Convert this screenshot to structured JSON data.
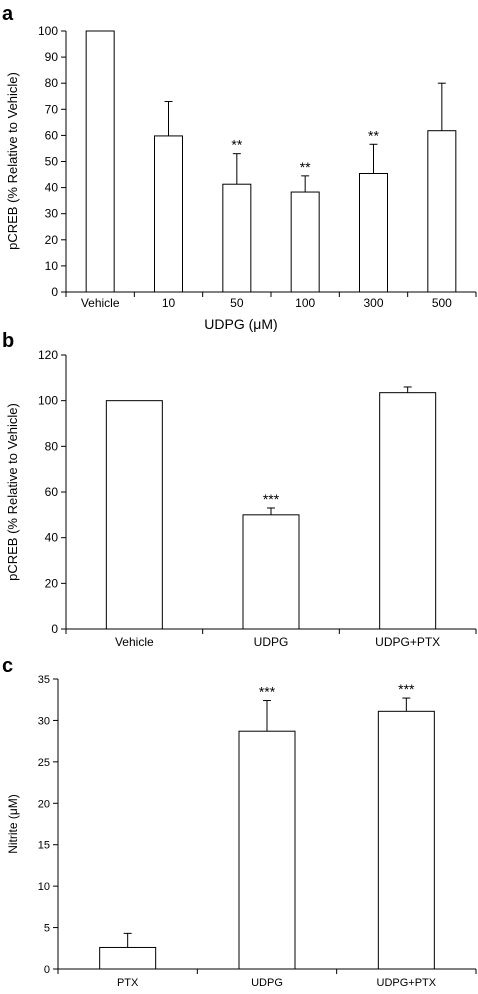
{
  "chart_data": [
    {
      "panel_label": "a",
      "type": "bar",
      "categories": [
        "Vehicle",
        "10",
        "50",
        "100",
        "300",
        "500"
      ],
      "values": [
        100,
        59.8,
        41.3,
        38.3,
        45.4,
        61.8
      ],
      "errors": [
        0,
        13.2,
        11.7,
        6.2,
        11.2,
        18.2
      ],
      "significance": [
        "",
        "",
        "**",
        "**",
        "**",
        ""
      ],
      "ylabel": "pCREB (% Relative to Vehicle)",
      "xlabel": "UDPG (μM)",
      "ylim": [
        0,
        100
      ],
      "yticks": [
        0,
        10,
        20,
        30,
        40,
        50,
        60,
        70,
        80,
        90,
        100
      ],
      "grid": false,
      "bar_fill": "#ffffff",
      "bar_stroke": "#000000"
    },
    {
      "panel_label": "b",
      "type": "bar",
      "categories": [
        "Vehicle",
        "UDPG",
        "UDPG+PTX"
      ],
      "values": [
        100,
        50,
        103.5
      ],
      "errors": [
        0,
        3,
        2.5
      ],
      "significance": [
        "",
        "***",
        ""
      ],
      "ylabel": "pCREB (% Relative to Vehicle)",
      "xlabel": "",
      "ylim": [
        0,
        120
      ],
      "yticks": [
        0,
        20,
        40,
        60,
        80,
        100,
        120
      ],
      "grid": false,
      "bar_fill": "#ffffff",
      "bar_stroke": "#000000"
    },
    {
      "panel_label": "c",
      "type": "bar",
      "categories": [
        "PTX",
        "UDPG",
        "UDPG+PTX"
      ],
      "values": [
        2.6,
        28.7,
        31.1
      ],
      "errors": [
        1.7,
        3.7,
        1.6
      ],
      "significance": [
        "",
        "***",
        "***"
      ],
      "ylabel": "Nitrite (μM)",
      "xlabel": "",
      "ylim": [
        0,
        35
      ],
      "yticks": [
        0,
        5,
        10,
        15,
        20,
        25,
        30,
        35
      ],
      "grid": false,
      "bar_fill": "#ffffff",
      "bar_stroke": "#000000"
    }
  ]
}
